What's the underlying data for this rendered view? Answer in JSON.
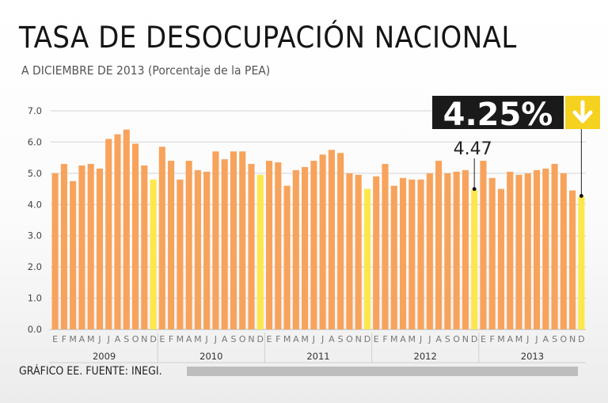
{
  "title": "TASA DE DESOCUPACIÓN NACIONAL",
  "subtitle": "A DICIEMBRE DE 2013 (Porcentaje de la PEA)",
  "footer": "GRÁFICO EE. FUENTE: INEGI.",
  "colors": {
    "bar": "#f7a35c",
    "december_bar": "#fde74c",
    "callout_bg": "#1a1a1a",
    "arrow_bg": "#f5d21f"
  },
  "chart_data": {
    "type": "bar",
    "ylim": [
      0,
      7
    ],
    "y_ticks": [
      "0.0",
      "1.0",
      "2.0",
      "3.0",
      "4.0",
      "5.0",
      "6.0",
      "7.0"
    ],
    "month_labels": [
      "E",
      "F",
      "M",
      "A",
      "M",
      "J",
      "J",
      "A",
      "S",
      "O",
      "N",
      "D"
    ],
    "years": [
      "2009",
      "2010",
      "2011",
      "2012",
      "2013"
    ],
    "grid": true,
    "highlighted_month": "D",
    "values": [
      5.0,
      5.3,
      4.75,
      5.25,
      5.3,
      5.15,
      6.1,
      6.25,
      6.4,
      5.95,
      5.25,
      4.8,
      5.85,
      5.4,
      4.8,
      5.4,
      5.1,
      5.05,
      5.7,
      5.45,
      5.7,
      5.7,
      5.3,
      4.95,
      5.4,
      5.35,
      4.6,
      5.1,
      5.2,
      5.4,
      5.6,
      5.75,
      5.65,
      5.0,
      4.95,
      4.5,
      4.9,
      5.3,
      4.6,
      4.85,
      4.8,
      4.8,
      5.0,
      5.4,
      5.0,
      5.05,
      5.1,
      4.47,
      5.4,
      4.85,
      4.5,
      5.05,
      4.95,
      5.0,
      5.1,
      5.15,
      5.3,
      5.0,
      4.45,
      4.25
    ],
    "annotations": [
      {
        "label": "4.47",
        "index": 47
      },
      {
        "label": "4.25%",
        "index": 59,
        "arrow": "down"
      }
    ]
  }
}
